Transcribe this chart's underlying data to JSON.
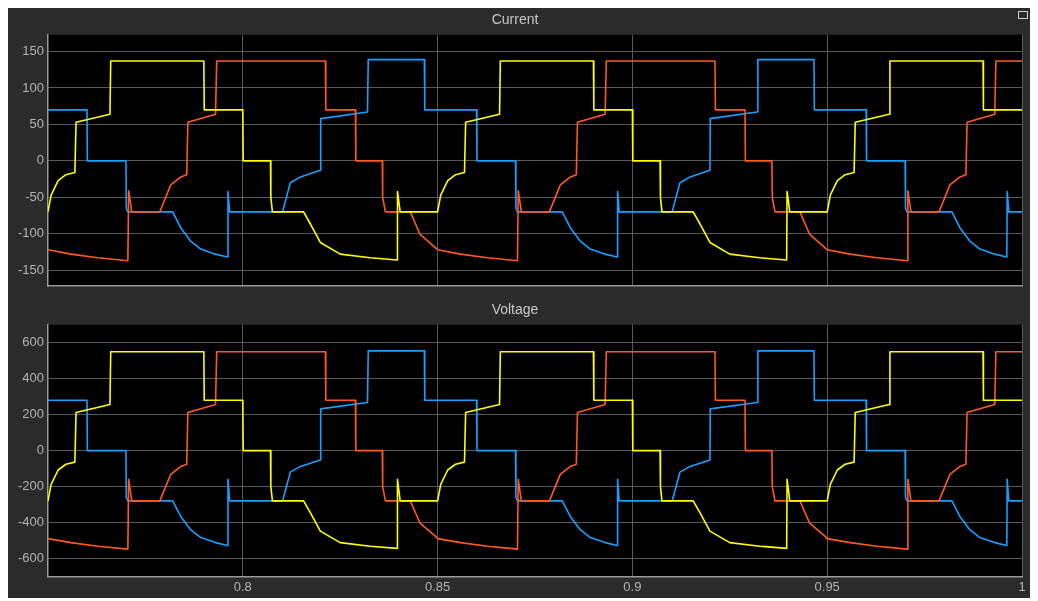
{
  "chart_data": [
    {
      "type": "line",
      "title": "Current",
      "xlim": [
        0.75,
        1
      ],
      "xticks": [
        0.8,
        0.85,
        0.9,
        0.95,
        1
      ],
      "ylim": [
        -172,
        173
      ],
      "yticks": [
        -150,
        -100,
        -50,
        0,
        50,
        100,
        150
      ],
      "grid": true,
      "tick_labels": "y",
      "marker": "none",
      "line_style": "solid",
      "series": [
        {
          "color": "#ffff00",
          "x": [
            0.75,
            0.7508,
            0.7526,
            0.7546,
            0.7569,
            0.7572,
            0.7659,
            0.7661,
            0.79,
            0.7901,
            0.8,
            0.8001,
            0.8071,
            0.8072,
            0.8076,
            0.8156,
            0.8174,
            0.8199,
            0.825,
            0.8327,
            0.8396,
            0.8397,
            0.8404,
            0.85,
            0.8508,
            0.8526,
            0.8546,
            0.8569,
            0.8572,
            0.8659,
            0.8661,
            0.89,
            0.8901,
            0.9,
            0.9001,
            0.9071,
            0.9072,
            0.9076,
            0.9156,
            0.9174,
            0.9199,
            0.925,
            0.9327,
            0.9396,
            0.9397,
            0.9404,
            0.95,
            0.9508,
            0.9526,
            0.9546,
            0.9569,
            0.9572,
            0.9659,
            0.9661,
            0.99,
            0.9901,
            1
          ],
          "values": [
            -70,
            -47,
            -27,
            -19,
            -16,
            53,
            64,
            137,
            137,
            70,
            70,
            0,
            0,
            -50,
            -70,
            -70,
            -87,
            -112,
            -128,
            -133,
            -136,
            -42,
            -70,
            -70,
            -47,
            -27,
            -19,
            -16,
            53,
            64,
            137,
            137,
            70,
            70,
            0,
            0,
            -50,
            -70,
            -70,
            -87,
            -112,
            -128,
            -133,
            -136,
            -42,
            -70,
            -70,
            -47,
            -27,
            -19,
            -16,
            53,
            64,
            137,
            137,
            70,
            70
          ]
        },
        {
          "color": "#ff5a1e",
          "x": [
            0.75,
            0.7559,
            0.7628,
            0.7705,
            0.7707,
            0.7715,
            0.7787,
            0.7815,
            0.7841,
            0.7856,
            0.7859,
            0.793,
            0.7933,
            0.8212,
            0.8213,
            0.8289,
            0.829,
            0.8358,
            0.8359,
            0.8366,
            0.843,
            0.8455,
            0.8494,
            0.85,
            0.8559,
            0.8628,
            0.8705,
            0.8707,
            0.8715,
            0.8787,
            0.8815,
            0.8841,
            0.8856,
            0.8859,
            0.893,
            0.8933,
            0.9212,
            0.9213,
            0.9289,
            0.929,
            0.9358,
            0.9359,
            0.9366,
            0.943,
            0.9455,
            0.9494,
            0.95,
            0.9559,
            0.9628,
            0.9705,
            0.9707,
            0.9715,
            0.9787,
            0.9815,
            0.9841,
            0.9856,
            0.9859,
            0.993,
            0.9933,
            1
          ],
          "values": [
            -122,
            -128,
            -133,
            -137,
            -41,
            -70,
            -70,
            -33,
            -22,
            -19,
            53,
            64,
            137,
            137,
            70,
            70,
            0,
            0,
            -50,
            -70,
            -70,
            -101,
            -119,
            -122,
            -128,
            -133,
            -137,
            -41,
            -70,
            -70,
            -33,
            -22,
            -19,
            53,
            64,
            137,
            137,
            70,
            70,
            0,
            0,
            -50,
            -70,
            -70,
            -101,
            -119,
            -122,
            -128,
            -133,
            -137,
            -41,
            -70,
            -70,
            -33,
            -22,
            -19,
            53,
            64,
            137,
            137
          ]
        },
        {
          "color": "#1a9fff",
          "x": [
            0.75,
            0.76,
            0.7601,
            0.77,
            0.7701,
            0.7705,
            0.782,
            0.7841,
            0.7866,
            0.7892,
            0.793,
            0.7961,
            0.7962,
            0.7966,
            0.8102,
            0.8122,
            0.8148,
            0.8199,
            0.82,
            0.832,
            0.8322,
            0.8466,
            0.8467,
            0.85,
            0.86,
            0.8601,
            0.87,
            0.8701,
            0.8705,
            0.882,
            0.8841,
            0.8866,
            0.8892,
            0.893,
            0.8961,
            0.8962,
            0.8966,
            0.9102,
            0.9122,
            0.9148,
            0.9199,
            0.92,
            0.932,
            0.9322,
            0.9466,
            0.9467,
            0.95,
            0.96,
            0.9601,
            0.97,
            0.9701,
            0.9705,
            0.982,
            0.9841,
            0.9866,
            0.9892,
            0.993,
            0.9961,
            0.9962,
            0.9966,
            1
          ],
          "values": [
            70,
            70,
            0,
            0,
            -65,
            -70,
            -70,
            -92,
            -110,
            -121,
            -128,
            -132,
            -42,
            -70,
            -70,
            -30,
            -22,
            -13,
            58,
            67,
            139,
            139,
            70,
            70,
            70,
            0,
            0,
            -65,
            -70,
            -70,
            -92,
            -110,
            -121,
            -128,
            -132,
            -42,
            -70,
            -70,
            -30,
            -22,
            -13,
            58,
            67,
            139,
            139,
            70,
            70,
            70,
            0,
            0,
            -65,
            -70,
            -70,
            -92,
            -110,
            -121,
            -128,
            -132,
            -42,
            -70,
            -70
          ]
        }
      ]
    },
    {
      "type": "line",
      "title": "Voltage",
      "xlim": [
        0.75,
        1
      ],
      "xticks": [
        0.8,
        0.85,
        0.9,
        0.95,
        1
      ],
      "ylim": [
        -700,
        700
      ],
      "yticks": [
        -600,
        -400,
        -200,
        0,
        200,
        400,
        600
      ],
      "grid": true,
      "marker": "none",
      "line_style": "solid",
      "series": [
        {
          "color": "#ffff00",
          "x": [
            0.75,
            0.7508,
            0.7526,
            0.7546,
            0.7569,
            0.7572,
            0.7659,
            0.7661,
            0.79,
            0.7901,
            0.8,
            0.8001,
            0.8071,
            0.8072,
            0.8076,
            0.8156,
            0.8174,
            0.8199,
            0.825,
            0.8327,
            0.8396,
            0.8397,
            0.8404,
            0.85,
            0.8508,
            0.8526,
            0.8546,
            0.8569,
            0.8572,
            0.8659,
            0.8661,
            0.89,
            0.8901,
            0.9,
            0.9001,
            0.9071,
            0.9072,
            0.9076,
            0.9156,
            0.9174,
            0.9199,
            0.925,
            0.9327,
            0.9396,
            0.9397,
            0.9404,
            0.95,
            0.9508,
            0.9526,
            0.9546,
            0.9569,
            0.9572,
            0.9659,
            0.9661,
            0.99,
            0.9901,
            1
          ],
          "values": [
            -280,
            -188,
            -108,
            -76,
            -64,
            212,
            256,
            550,
            550,
            280,
            280,
            0,
            0,
            -200,
            -280,
            -280,
            -348,
            -448,
            -512,
            -532,
            -544,
            -160,
            -280,
            -280,
            -188,
            -108,
            -76,
            -64,
            212,
            256,
            550,
            550,
            280,
            280,
            0,
            0,
            -200,
            -280,
            -280,
            -348,
            -448,
            -512,
            -532,
            -544,
            -160,
            -280,
            -280,
            -188,
            -108,
            -76,
            -64,
            212,
            256,
            550,
            550,
            280,
            280
          ]
        },
        {
          "color": "#ff5a1e",
          "x": [
            0.75,
            0.7559,
            0.7628,
            0.7705,
            0.7707,
            0.7715,
            0.7787,
            0.7815,
            0.7841,
            0.7856,
            0.7859,
            0.793,
            0.7933,
            0.8212,
            0.8213,
            0.8289,
            0.829,
            0.8358,
            0.8359,
            0.8366,
            0.843,
            0.8455,
            0.8494,
            0.85,
            0.8559,
            0.8628,
            0.8705,
            0.8707,
            0.8715,
            0.8787,
            0.8815,
            0.8841,
            0.8856,
            0.8859,
            0.893,
            0.8933,
            0.9212,
            0.9213,
            0.9289,
            0.929,
            0.9358,
            0.9359,
            0.9366,
            0.943,
            0.9455,
            0.9494,
            0.95,
            0.9559,
            0.9628,
            0.9705,
            0.9707,
            0.9715,
            0.9787,
            0.9815,
            0.9841,
            0.9856,
            0.9859,
            0.993,
            0.9933,
            1
          ],
          "values": [
            -490,
            -512,
            -532,
            -548,
            -160,
            -280,
            -280,
            -132,
            -88,
            -76,
            212,
            256,
            550,
            550,
            280,
            280,
            0,
            0,
            -200,
            -280,
            -280,
            -404,
            -476,
            -490,
            -512,
            -532,
            -548,
            -160,
            -280,
            -280,
            -132,
            -88,
            -76,
            212,
            256,
            550,
            550,
            280,
            280,
            0,
            0,
            -200,
            -280,
            -280,
            -404,
            -476,
            -490,
            -512,
            -532,
            -548,
            -160,
            -280,
            -280,
            -132,
            -88,
            -76,
            212,
            256,
            550,
            550
          ]
        },
        {
          "color": "#1a9fff",
          "x": [
            0.75,
            0.76,
            0.7601,
            0.77,
            0.7701,
            0.7705,
            0.782,
            0.7841,
            0.7866,
            0.7892,
            0.793,
            0.7961,
            0.7962,
            0.7966,
            0.8102,
            0.8122,
            0.8148,
            0.8199,
            0.82,
            0.832,
            0.8322,
            0.8466,
            0.8467,
            0.85,
            0.86,
            0.8601,
            0.87,
            0.8701,
            0.8705,
            0.882,
            0.8841,
            0.8866,
            0.8892,
            0.893,
            0.8961,
            0.8962,
            0.8966,
            0.9102,
            0.9122,
            0.9148,
            0.9199,
            0.92,
            0.932,
            0.9322,
            0.9466,
            0.9467,
            0.95,
            0.96,
            0.9601,
            0.97,
            0.9701,
            0.9705,
            0.982,
            0.9841,
            0.9866,
            0.9892,
            0.993,
            0.9961,
            0.9962,
            0.9966,
            1
          ],
          "values": [
            280,
            280,
            0,
            0,
            -260,
            -280,
            -280,
            -368,
            -440,
            -484,
            -512,
            -528,
            -160,
            -280,
            -280,
            -120,
            -88,
            -52,
            232,
            268,
            555,
            555,
            280,
            280,
            280,
            0,
            0,
            -260,
            -280,
            -280,
            -368,
            -440,
            -484,
            -512,
            -528,
            -160,
            -280,
            -280,
            -120,
            -88,
            -52,
            232,
            268,
            555,
            555,
            280,
            280,
            280,
            0,
            0,
            -260,
            -280,
            -280,
            -368,
            -440,
            -484,
            -512,
            -528,
            -160,
            -280,
            -280
          ]
        }
      ]
    }
  ]
}
